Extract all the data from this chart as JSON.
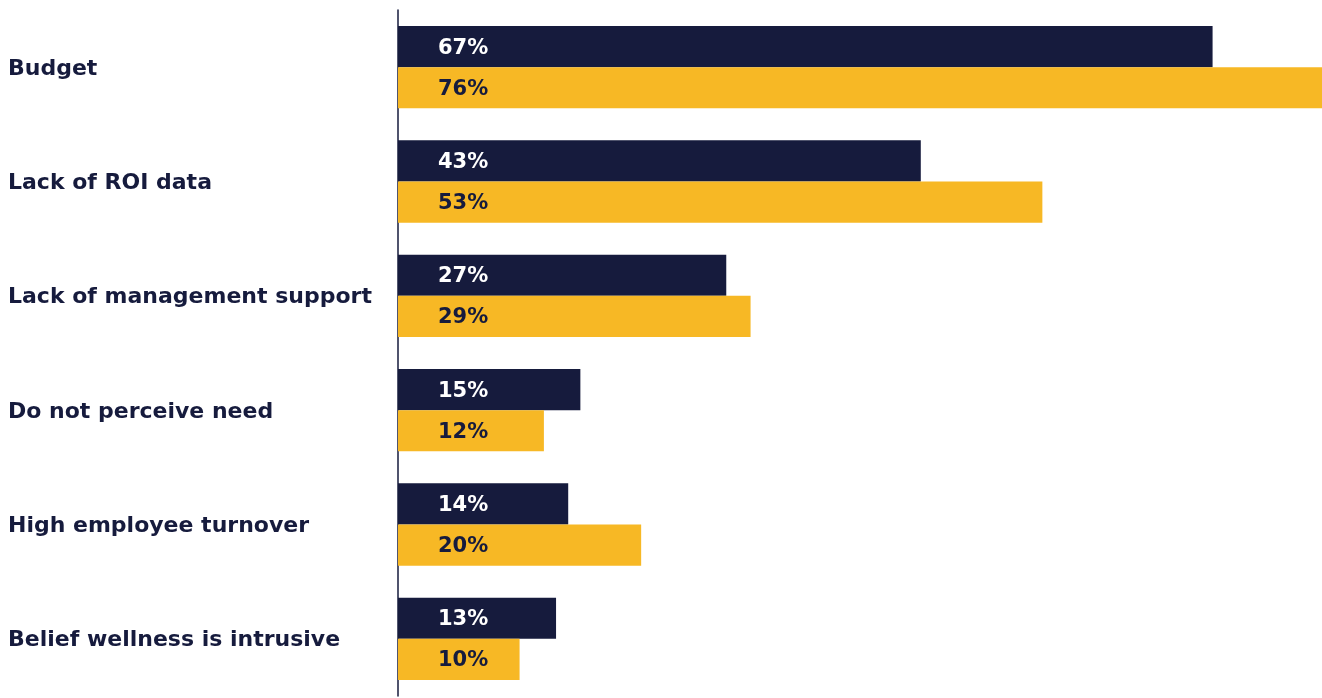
{
  "chart_data": {
    "type": "bar",
    "orientation": "horizontal",
    "categories": [
      "Budget",
      "Lack of ROI data",
      "Lack of management support",
      "Do not perceive need",
      "High employee turnover",
      "Belief wellness is intrusive"
    ],
    "series": [
      {
        "color": "#161b3d",
        "values": [
          67,
          43,
          27,
          15,
          14,
          13
        ],
        "value_labels": [
          "67%",
          "43%",
          "27%",
          "15%",
          "14%",
          "13%"
        ]
      },
      {
        "color": "#f7b825",
        "values": [
          76,
          53,
          29,
          12,
          20,
          10
        ],
        "value_labels": [
          "76%",
          "53%",
          "29%",
          "12%",
          "20%",
          "10%"
        ]
      }
    ]
  }
}
